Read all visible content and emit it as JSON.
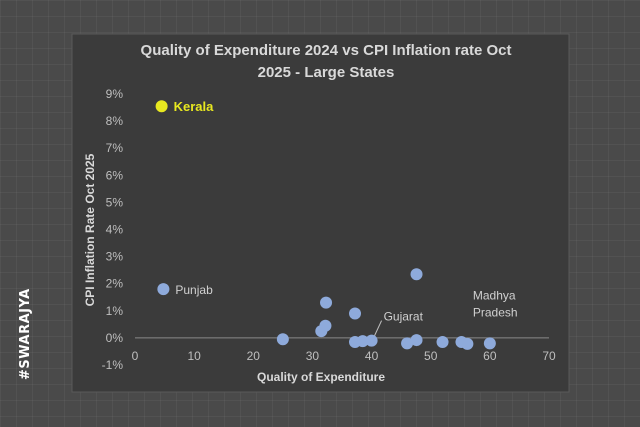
{
  "watermark": "#SWARAJYA",
  "chart_data": {
    "type": "scatter",
    "title_lines": [
      "Quality of Expenditure 2024 vs CPI Inflation rate Oct",
      "2025 - Large States"
    ],
    "xlabel": "Quality of Expenditure",
    "ylabel": "CPI Inflation Rate Oct 2025",
    "xlim": [
      0,
      70
    ],
    "ylim": [
      -1,
      9
    ],
    "x_ticks": [
      0,
      10,
      20,
      30,
      40,
      50,
      60,
      70
    ],
    "y_ticks": [
      -1,
      0,
      1,
      2,
      3,
      4,
      5,
      6,
      7,
      8,
      9
    ],
    "y_tick_labels": [
      "-1%",
      "0%",
      "1%",
      "2%",
      "3%",
      "4%",
      "5%",
      "6%",
      "7%",
      "8%",
      "9%"
    ],
    "grid": false,
    "colors": {
      "default": "#8eaadb",
      "highlight": "#e8e820",
      "background": "#3b3b3b"
    },
    "points": [
      {
        "x": 4.5,
        "y": 8.55,
        "label": "Kerala",
        "highlight": true
      },
      {
        "x": 4.8,
        "y": 1.8,
        "label": "Punjab"
      },
      {
        "x": 25,
        "y": -0.05
      },
      {
        "x": 31.5,
        "y": 0.25
      },
      {
        "x": 32.2,
        "y": 0.45
      },
      {
        "x": 32.3,
        "y": 1.3
      },
      {
        "x": 37.2,
        "y": 0.9
      },
      {
        "x": 37.2,
        "y": -0.15
      },
      {
        "x": 38.5,
        "y": -0.12
      },
      {
        "x": 40,
        "y": -0.1,
        "label": "Gujarat"
      },
      {
        "x": 46,
        "y": -0.2
      },
      {
        "x": 47.6,
        "y": -0.08
      },
      {
        "x": 47.6,
        "y": 2.35
      },
      {
        "x": 52,
        "y": -0.15
      },
      {
        "x": 55.2,
        "y": -0.15
      },
      {
        "x": 56.2,
        "y": -0.22
      },
      {
        "x": 60,
        "y": -0.2,
        "label": "Madhya Pradesh"
      }
    ]
  }
}
